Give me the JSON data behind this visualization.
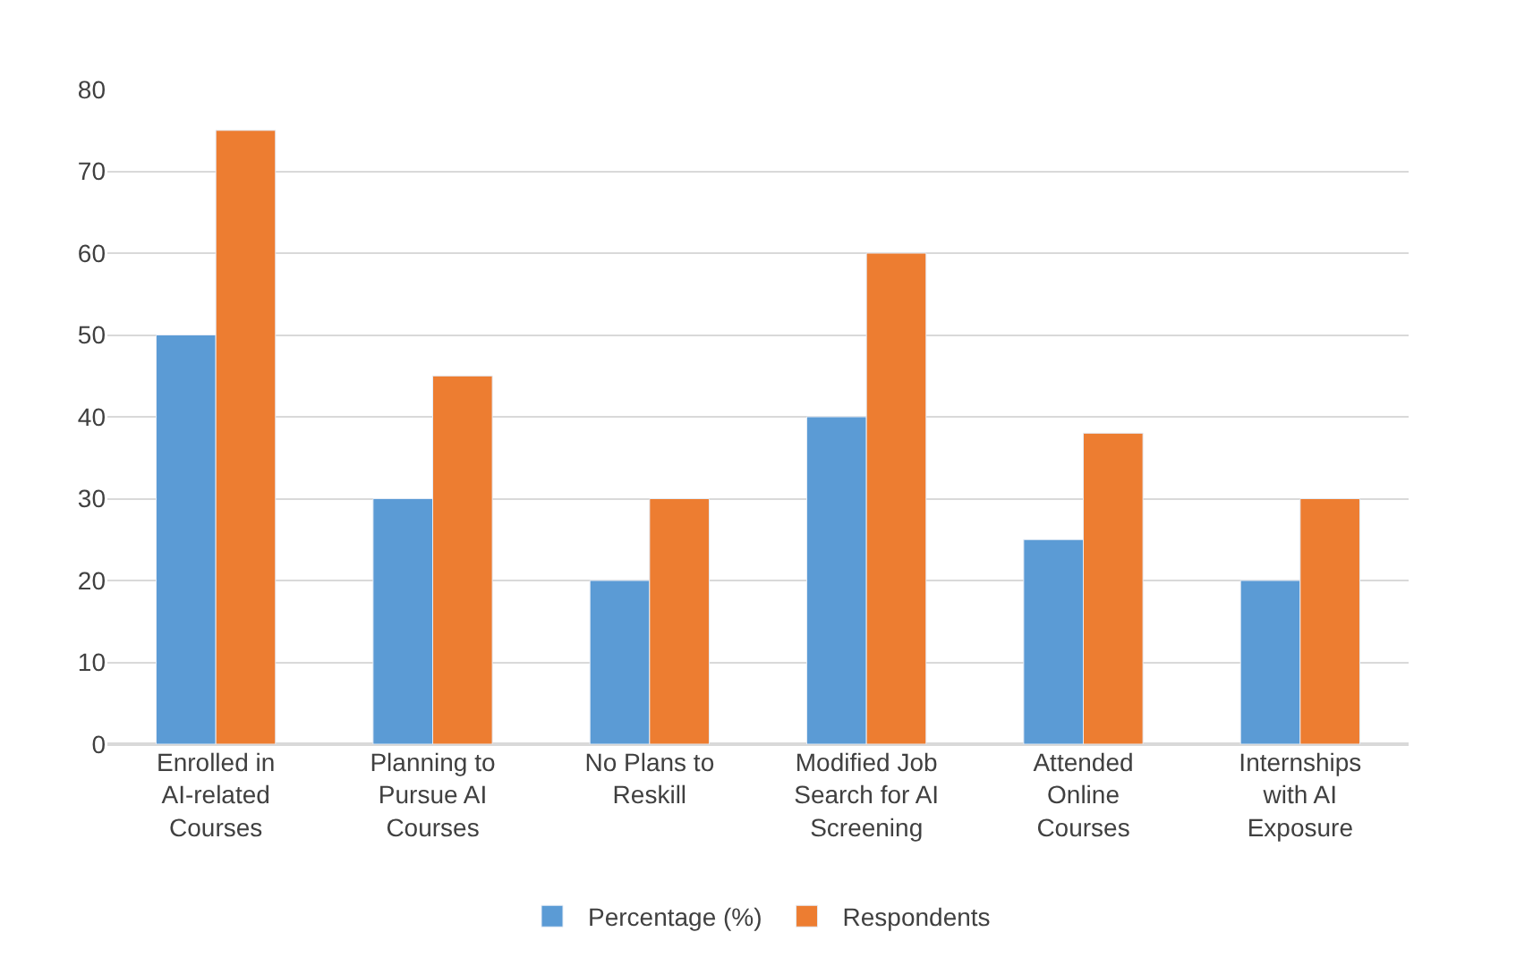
{
  "chart_data": {
    "type": "bar",
    "categories": [
      "Enrolled in AI-related Courses",
      "Planning to Pursue AI Courses",
      "No Plans to Reskill",
      "Modified Job Search for AI Screening",
      "Attended Online Courses",
      "Internships with AI Exposure"
    ],
    "series": [
      {
        "name": "Percentage (%)",
        "color": "#5b9bd5",
        "values": [
          50,
          30,
          20,
          40,
          25,
          20
        ]
      },
      {
        "name": "Respondents",
        "color": "#ed7d31",
        "values": [
          75,
          45,
          30,
          60,
          38,
          30
        ]
      }
    ],
    "ylim": [
      0,
      80
    ],
    "yticks": [
      0,
      10,
      20,
      30,
      40,
      50,
      60,
      70,
      80
    ],
    "grid": "y",
    "legend": "bottom"
  }
}
